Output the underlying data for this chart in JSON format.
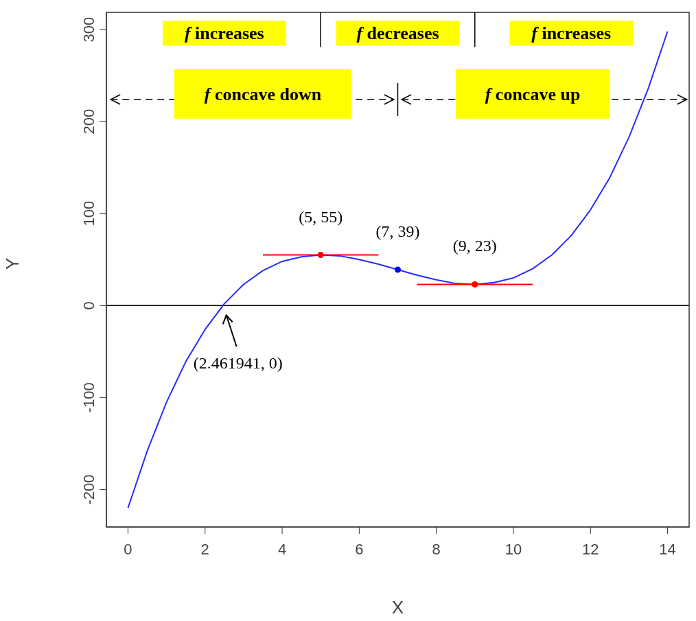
{
  "chart_data": {
    "type": "line",
    "xlabel": "X",
    "ylabel": "Y",
    "xlim": [
      -0.56,
      14.56
    ],
    "ylim": [
      -240.7,
      318.7
    ],
    "xticks": [
      0,
      2,
      4,
      6,
      8,
      10,
      12,
      14
    ],
    "yticks": [
      -200,
      -100,
      0,
      100,
      200,
      300
    ],
    "series": [
      {
        "color": "#2a2aff",
        "marker": "none",
        "x": [
          0,
          0.5,
          1,
          1.5,
          2,
          2.5,
          3,
          3.5,
          4,
          4.5,
          5,
          5.5,
          6,
          6.5,
          7,
          7.5,
          8,
          8.5,
          9,
          9.5,
          10,
          10.5,
          11,
          11.5,
          12,
          12.5,
          13,
          13.5,
          14
        ],
        "values": [
          -220,
          -158,
          -105,
          -61,
          -26,
          2,
          23,
          38,
          48,
          53,
          55,
          54,
          50,
          45,
          39,
          33,
          28,
          24,
          23,
          25,
          30,
          40,
          55,
          76,
          104,
          139,
          183,
          236,
          298
        ]
      },
      {
        "color": "#ff0000",
        "marker": "none",
        "x": [
          3.5,
          6.5
        ],
        "values": [
          55,
          55
        ]
      },
      {
        "color": "#ff0000",
        "marker": "none",
        "x": [
          7.5,
          10.5
        ],
        "values": [
          23,
          23
        ]
      },
      {
        "type": "scatter",
        "color": "#ff0000",
        "marker": "circle",
        "x": [
          5,
          9
        ],
        "values": [
          55,
          23
        ]
      },
      {
        "type": "scatter",
        "color": "#0000ff",
        "marker": "circle",
        "x": [
          7
        ],
        "values": [
          39
        ]
      }
    ],
    "ref_lines": [
      {
        "axis": "y",
        "value": 0,
        "color": "#000000"
      }
    ],
    "annotations": [
      "f increases",
      "f decreases",
      "f increases",
      "f concave down",
      "f concave up",
      {
        "text": "(5, 55)",
        "x": 5,
        "y": 55
      },
      {
        "text": "(7, 39)",
        "x": 7,
        "y": 39
      },
      {
        "text": "(9, 23)",
        "x": 9,
        "y": 23
      },
      {
        "text": "(2.461941, 0)",
        "x": 2.461941,
        "y": 0
      }
    ]
  }
}
